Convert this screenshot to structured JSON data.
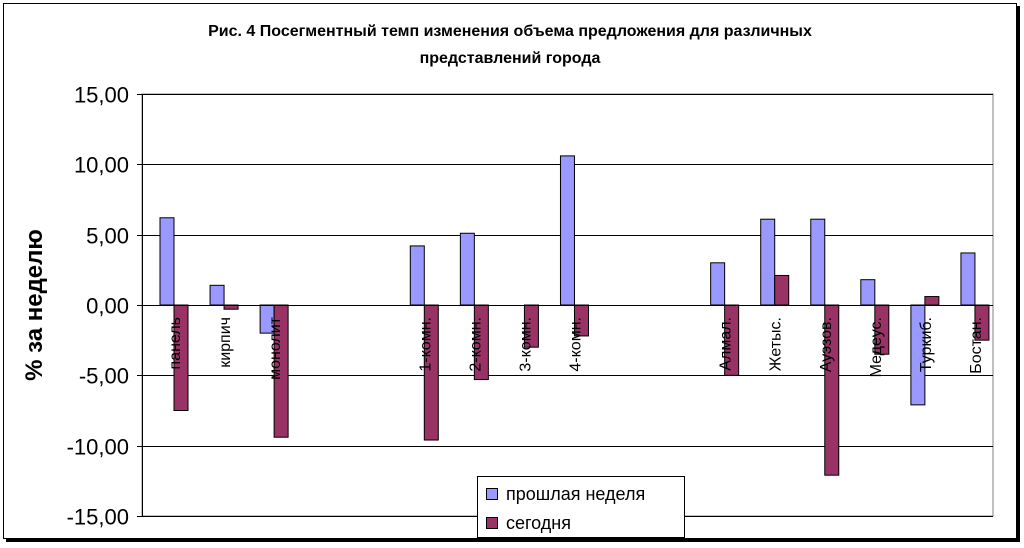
{
  "chart_data": {
    "type": "bar",
    "title": "Рис. 4 Посегментный темп изменения объема предложения для различных\nпредставлений города",
    "ylabel": "% за неделю",
    "xlabel": "",
    "ylim": [
      -15,
      15
    ],
    "yticks": [
      "15,00",
      "10,00",
      "5,00",
      "0,00",
      "-5,00",
      "-10,00",
      "-15,00"
    ],
    "grid": true,
    "legend_position": "bottom-center",
    "categories": [
      "панель",
      "кирпич",
      "монолит",
      "",
      "",
      "1-комн.",
      "2-комн.",
      "3-комн.",
      "4-комн.",
      "",
      "",
      "Алмал.",
      "Жетыс.",
      "Ауэзов.",
      "Медеус.",
      "Туркиб.",
      "Бостан."
    ],
    "series": [
      {
        "name": "прошлая неделя",
        "color": "#9999FF",
        "values": [
          6.2,
          1.4,
          -2.0,
          null,
          null,
          4.2,
          5.1,
          null,
          10.6,
          null,
          null,
          3.0,
          6.1,
          6.1,
          1.8,
          -7.1,
          3.7
        ]
      },
      {
        "name": "сегодня",
        "color": "#993366",
        "values": [
          -7.5,
          -0.3,
          -9.4,
          null,
          null,
          -9.6,
          -5.3,
          -3.0,
          -2.2,
          null,
          null,
          -5.0,
          2.1,
          -12.1,
          -3.5,
          0.6,
          -2.5
        ]
      }
    ]
  }
}
